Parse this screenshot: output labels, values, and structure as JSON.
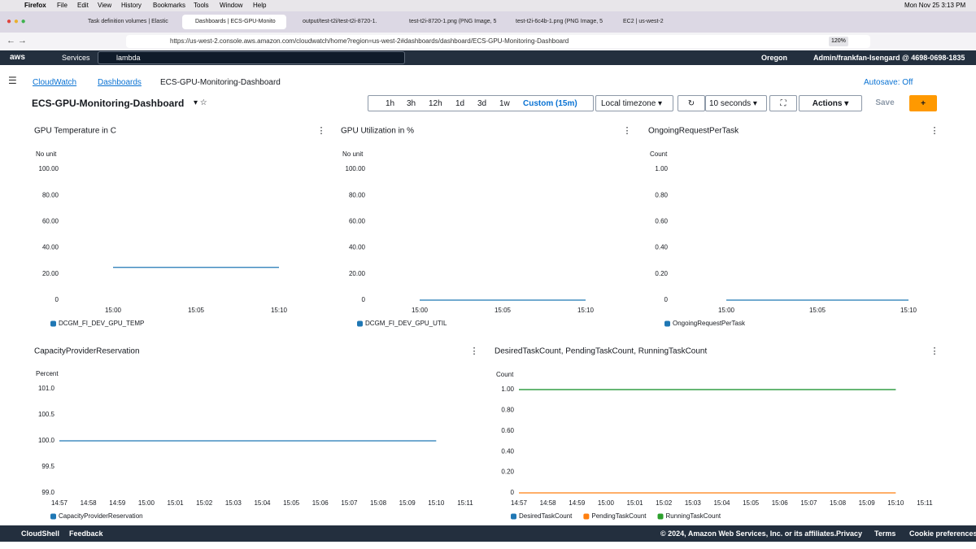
{
  "menubar": {
    "app": "Firefox",
    "menus": [
      "File",
      "Edit",
      "View",
      "History",
      "Bookmarks",
      "Tools",
      "Window",
      "Help"
    ],
    "clock": "Mon Nov 25  3:13 PM"
  },
  "tabs": [
    "Task definition volumes | Elastic",
    "Dashboards | ECS-GPU-Monito",
    "output/test-t2i/test-t2i-8720-1.",
    "test-t2i-8720-1.png (PNG Image, 5",
    "test-t2i-6c4b-1.png (PNG Image, 5",
    "EC2 | us-west-2"
  ],
  "url": "https://us-west-2.console.aws.amazon.com/cloudwatch/home?region=us-west-2#dashboards/dashboard/ECS-GPU-Monitoring-Dashboard",
  "zoom": "120%",
  "aws_nav": {
    "logo": "aws",
    "services": "Services",
    "search": "lambda",
    "region": "Oregon",
    "account": "Admin/frankfan-Isengard @ 4698-0698-1835"
  },
  "breadcrumb": [
    "CloudWatch",
    "Dashboards",
    "ECS-GPU-Monitoring-Dashboard"
  ],
  "autosave": "Autosave: Off",
  "dashboard_title": "ECS-GPU-Monitoring-Dashboard",
  "time_ranges": [
    "1h",
    "3h",
    "12h",
    "1d",
    "3d",
    "1w",
    "Custom (15m)"
  ],
  "timezone": "Local timezone",
  "refresh": "10 seconds",
  "actions": "Actions",
  "save": "Save",
  "widgets": [
    {
      "title": "GPU Temperature in C",
      "chart_data": {
        "type": "line",
        "unit_label": "No unit",
        "ylim": [
          0,
          100
        ],
        "yticks": [
          {
            "value": 100,
            "label": "100.00"
          },
          {
            "value": 80,
            "label": "80.00"
          },
          {
            "value": 60,
            "label": "60.00"
          },
          {
            "value": 40,
            "label": "40.00"
          },
          {
            "value": 20,
            "label": "20.00"
          },
          0
        ],
        "x": [
          "15:00",
          "15:05",
          "15:10"
        ],
        "series": [
          {
            "name": "DCGM_FI_DEV_GPU_TEMP",
            "color": "#1f77b4",
            "values": [
              25,
              25,
              25
            ]
          }
        ]
      }
    },
    {
      "title": "GPU Utilization in %",
      "chart_data": {
        "type": "line",
        "unit_label": "No unit",
        "ylim": [
          0,
          100
        ],
        "yticks": [
          {
            "value": 100,
            "label": "100.00"
          },
          {
            "value": 80,
            "label": "80.00"
          },
          {
            "value": 60,
            "label": "60.00"
          },
          {
            "value": 40,
            "label": "40.00"
          },
          {
            "value": 20,
            "label": "20.00"
          },
          0
        ],
        "x": [
          "15:00",
          "15:05",
          "15:10"
        ],
        "series": [
          {
            "name": "DCGM_FI_DEV_GPU_UTIL",
            "color": "#1f77b4",
            "values": [
              0,
              0,
              0
            ]
          }
        ]
      }
    },
    {
      "title": "OngoingRequestPerTask",
      "chart_data": {
        "type": "line",
        "unit_label": "Count",
        "ylim": [
          0,
          1
        ],
        "yticks": [
          {
            "value": 1,
            "label": "1.00"
          },
          {
            "value": 0.8,
            "label": "0.80"
          },
          {
            "value": 0.6,
            "label": "0.60"
          },
          {
            "value": 0.4,
            "label": "0.40"
          },
          {
            "value": 0.2,
            "label": "0.20"
          },
          0
        ],
        "x": [
          "15:00",
          "15:05",
          "15:10"
        ],
        "series": [
          {
            "name": "OngoingRequestPerTask",
            "color": "#1f77b4",
            "values": [
              0,
              0,
              0
            ]
          }
        ]
      }
    },
    {
      "title": "CapacityProviderReservation",
      "chart_data": {
        "type": "line",
        "unit_label": "Percent",
        "ylim": [
          99,
          101
        ],
        "yticks": [
          {
            "value": 101,
            "label": "101.0"
          },
          {
            "value": 100.5,
            "label": "100.5"
          },
          {
            "value": 100,
            "label": "100.0"
          },
          {
            "value": 99.5,
            "label": "99.5"
          },
          {
            "value": 99,
            "label": "99.0"
          }
        ],
        "x": [
          "14:57",
          "14:58",
          "14:59",
          "15:00",
          "15:01",
          "15:02",
          "15:03",
          "15:04",
          "15:05",
          "15:06",
          "15:07",
          "15:08",
          "15:09",
          "15:10",
          "15:11"
        ],
        "series": [
          {
            "name": "CapacityProviderReservation",
            "color": "#1f77b4",
            "values": [
              100,
              100,
              100,
              100,
              100,
              100,
              100,
              100,
              100,
              100,
              100,
              100,
              100,
              100,
              null
            ]
          }
        ]
      }
    },
    {
      "title": "DesiredTaskCount, PendingTaskCount, RunningTaskCount",
      "chart_data": {
        "type": "line",
        "unit_label": "Count",
        "ylim": [
          0,
          1
        ],
        "yticks": [
          {
            "value": 1,
            "label": "1.00"
          },
          {
            "value": 0.8,
            "label": "0.80"
          },
          {
            "value": 0.6,
            "label": "0.60"
          },
          {
            "value": 0.4,
            "label": "0.40"
          },
          {
            "value": 0.2,
            "label": "0.20"
          },
          0
        ],
        "x": [
          "14:57",
          "14:58",
          "14:59",
          "15:00",
          "15:01",
          "15:02",
          "15:03",
          "15:04",
          "15:05",
          "15:06",
          "15:07",
          "15:08",
          "15:09",
          "15:10",
          "15:11"
        ],
        "series": [
          {
            "name": "DesiredTaskCount",
            "color": "#1f77b4",
            "values": [
              1,
              1,
              1,
              1,
              1,
              1,
              1,
              1,
              1,
              1,
              1,
              1,
              1,
              1,
              null
            ]
          },
          {
            "name": "PendingTaskCount",
            "color": "#ff7f0e",
            "values": [
              0,
              0,
              0,
              0,
              0,
              0,
              0,
              0,
              0,
              0,
              0,
              0,
              0,
              0,
              null
            ]
          },
          {
            "name": "RunningTaskCount",
            "color": "#2ca02c",
            "values": [
              1,
              1,
              1,
              1,
              1,
              1,
              1,
              1,
              1,
              1,
              1,
              1,
              1,
              1,
              null
            ]
          }
        ]
      }
    }
  ],
  "footer": {
    "cloudshell": "CloudShell",
    "feedback": "Feedback",
    "copyright": "© 2024, Amazon Web Services, Inc. or its affiliates.",
    "links": [
      "Privacy",
      "Terms",
      "Cookie preferences"
    ]
  }
}
